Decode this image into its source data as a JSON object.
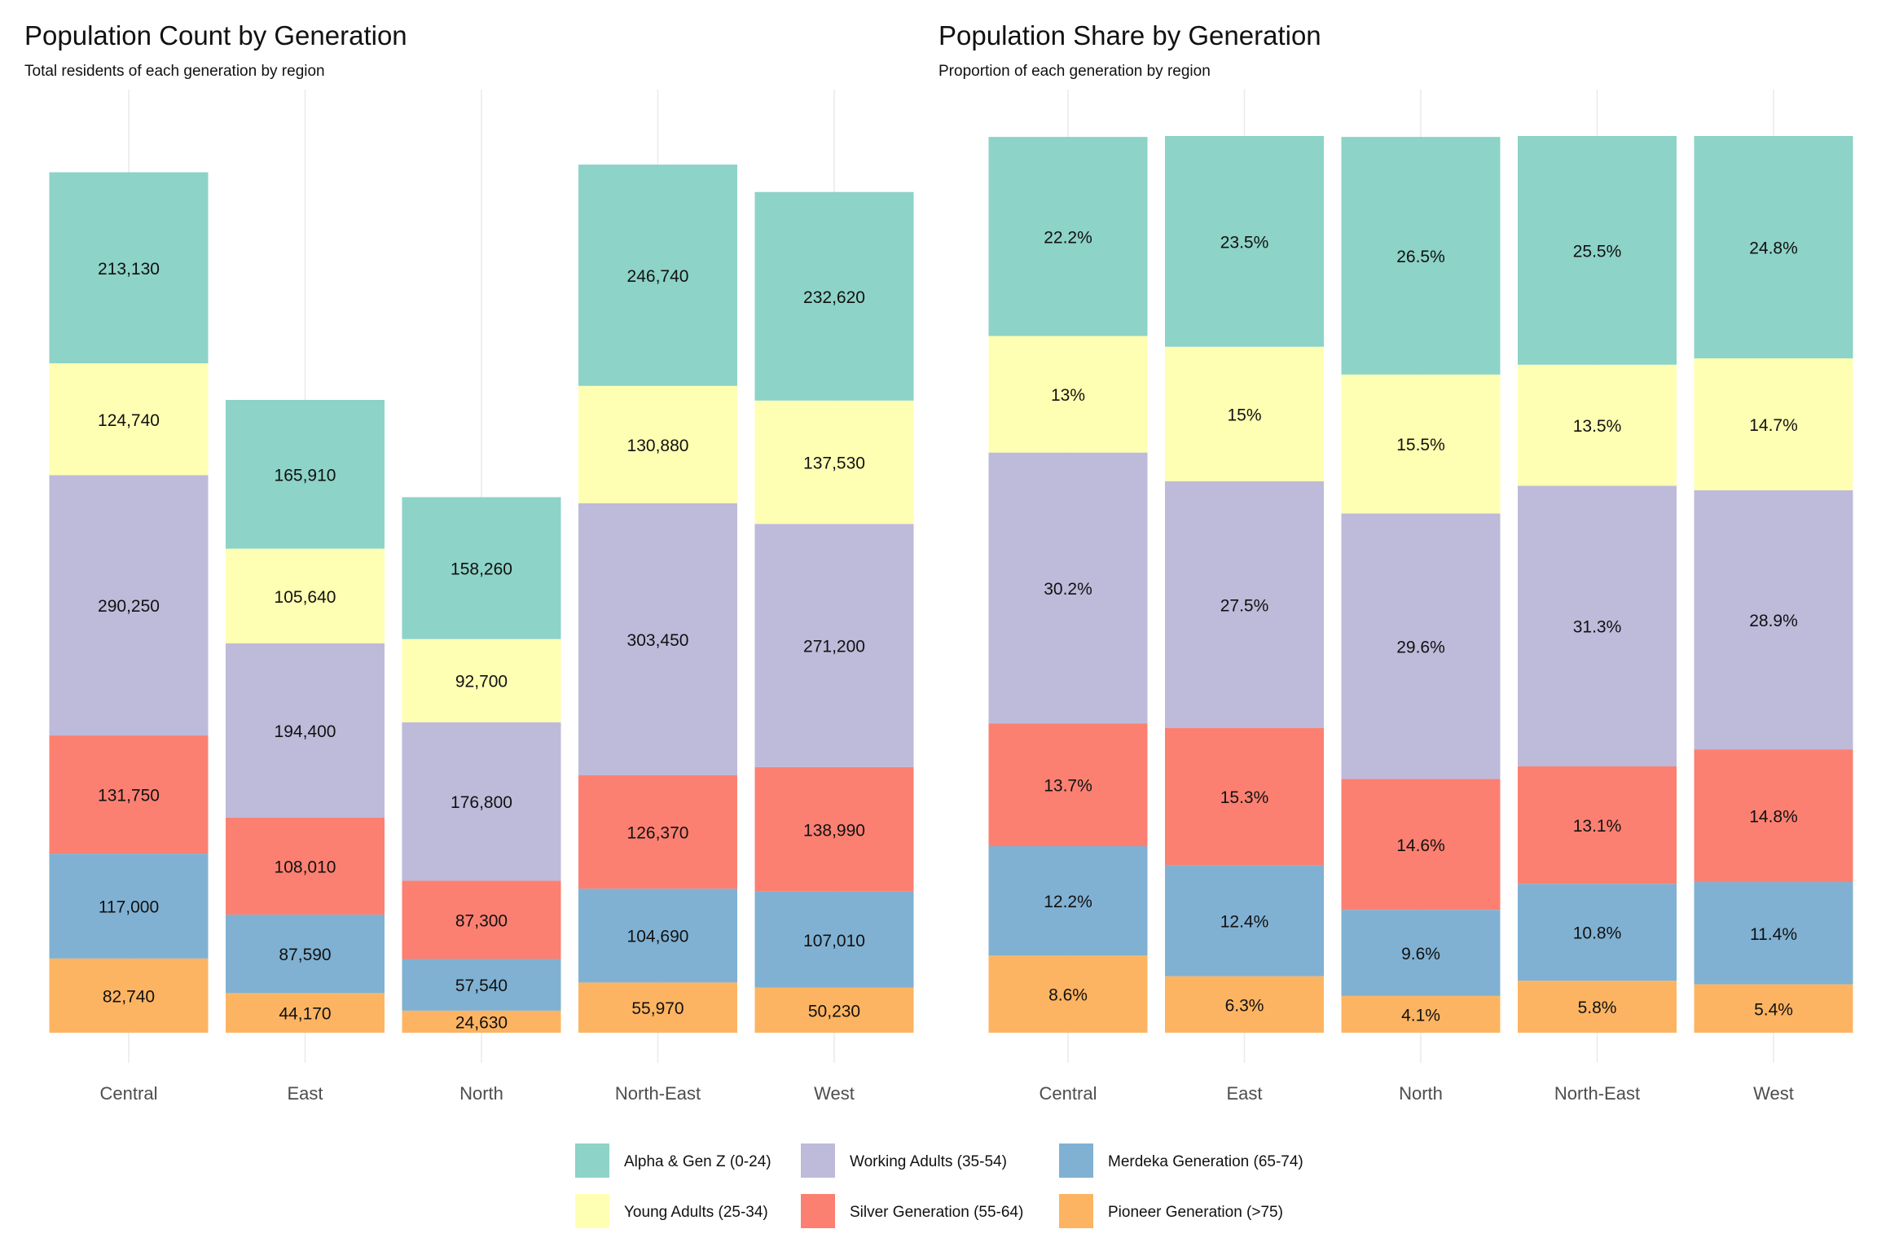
{
  "chart_data": [
    {
      "type": "bar",
      "stacked": true,
      "title": "Population Count by Generation",
      "subtitle": "Total residents of each generation by region",
      "xlabel": "",
      "ylabel": "",
      "categories": [
        "Central",
        "East",
        "North",
        "North-East",
        "West"
      ],
      "series": [
        {
          "name": "Alpha & Gen Z (0-24)",
          "values": [
            213130,
            165910,
            158260,
            246740,
            232620
          ],
          "labels": [
            "213,130",
            "165,910",
            "158,260",
            "246,740",
            "232,620"
          ]
        },
        {
          "name": "Young Adults (25-34)",
          "values": [
            124740,
            105640,
            92700,
            130880,
            137530
          ],
          "labels": [
            "124,740",
            "105,640",
            "92,700",
            "130,880",
            "137,530"
          ]
        },
        {
          "name": "Working Adults (35-54)",
          "values": [
            290250,
            194400,
            176800,
            303450,
            271200
          ],
          "labels": [
            "290,250",
            "194,400",
            "176,800",
            "303,450",
            "271,200"
          ]
        },
        {
          "name": "Silver Generation (55-64)",
          "values": [
            131750,
            108010,
            87300,
            126370,
            138990
          ],
          "labels": [
            "131,750",
            "108,010",
            "87,300",
            "126,370",
            "138,990"
          ]
        },
        {
          "name": "Merdeka Generation (65-74)",
          "values": [
            117000,
            87590,
            57540,
            104690,
            107010
          ],
          "labels": [
            "117,000",
            "87,590",
            "57,540",
            "104,690",
            "107,010"
          ]
        },
        {
          "name": "Pioneer Generation (>75)",
          "values": [
            82740,
            44170,
            24630,
            55970,
            50230
          ],
          "labels": [
            "82,740",
            "44,170",
            "24,630",
            "55,970",
            "50,230"
          ]
        }
      ],
      "ylim": [
        0,
        1000000
      ],
      "grid": "vertical-only"
    },
    {
      "type": "bar",
      "stacked": true,
      "title": "Population Share by Generation",
      "subtitle": "Proportion of each generation by region",
      "xlabel": "",
      "ylabel": "",
      "categories": [
        "Central",
        "East",
        "North",
        "North-East",
        "West"
      ],
      "series": [
        {
          "name": "Alpha & Gen Z (0-24)",
          "values": [
            22.2,
            23.5,
            26.5,
            25.5,
            24.8
          ],
          "labels": [
            "22.2%",
            "23.5%",
            "26.5%",
            "25.5%",
            "24.8%"
          ]
        },
        {
          "name": "Young Adults (25-34)",
          "values": [
            13,
            15,
            15.5,
            13.5,
            14.7
          ],
          "labels": [
            "13%",
            "15%",
            "15.5%",
            "13.5%",
            "14.7%"
          ]
        },
        {
          "name": "Working Adults (35-54)",
          "values": [
            30.2,
            27.5,
            29.6,
            31.3,
            28.9
          ],
          "labels": [
            "30.2%",
            "27.5%",
            "29.6%",
            "31.3%",
            "28.9%"
          ]
        },
        {
          "name": "Silver Generation (55-64)",
          "values": [
            13.7,
            15.3,
            14.6,
            13.1,
            14.8
          ],
          "labels": [
            "13.7%",
            "15.3%",
            "14.6%",
            "13.1%",
            "14.8%"
          ]
        },
        {
          "name": "Merdeka Generation (65-74)",
          "values": [
            12.2,
            12.4,
            9.6,
            10.8,
            11.4
          ],
          "labels": [
            "12.2%",
            "12.4%",
            "9.6%",
            "10.8%",
            "11.4%"
          ]
        },
        {
          "name": "Pioneer Generation (>75)",
          "values": [
            8.6,
            6.3,
            4.1,
            5.8,
            5.4
          ],
          "labels": [
            "8.6%",
            "6.3%",
            "4.1%",
            "5.8%",
            "5.4%"
          ]
        }
      ],
      "ylim": [
        0,
        100
      ],
      "grid": "vertical-only"
    }
  ],
  "legend": {
    "placement": "bottom",
    "items": [
      {
        "name": "Alpha & Gen Z (0-24)",
        "color": "#8dd3c7"
      },
      {
        "name": "Young Adults (25-34)",
        "color": "#ffffb3"
      },
      {
        "name": "Working Adults (35-54)",
        "color": "#bebada"
      },
      {
        "name": "Silver Generation (55-64)",
        "color": "#fb8072"
      },
      {
        "name": "Merdeka Generation (65-74)",
        "color": "#80b1d3"
      },
      {
        "name": "Pioneer Generation (>75)",
        "color": "#fdb462"
      }
    ]
  },
  "colors": [
    "#8dd3c7",
    "#ffffb3",
    "#bebada",
    "#fb8072",
    "#80b1d3",
    "#fdb462"
  ]
}
